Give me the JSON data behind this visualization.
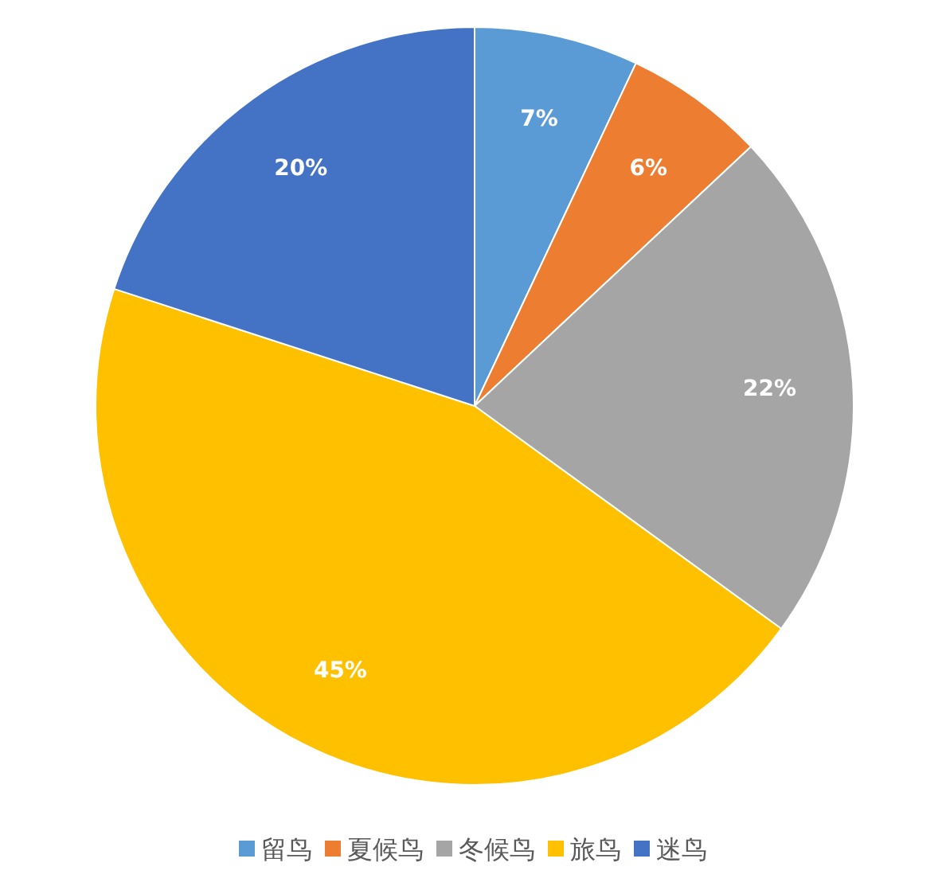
{
  "chart_data": {
    "type": "pie",
    "categories": [
      "留鸟",
      "夏候鸟",
      "冬候鸟",
      "旅鸟",
      "迷鸟"
    ],
    "values": [
      7,
      6,
      22,
      45,
      20
    ],
    "colors": [
      "#5b9bd5",
      "#ed7d31",
      "#a5a5a5",
      "#ffc000",
      "#4472c4"
    ],
    "value_labels": [
      "7%",
      "6%",
      "22%",
      "45%",
      "20%"
    ],
    "legend": "bottom"
  }
}
